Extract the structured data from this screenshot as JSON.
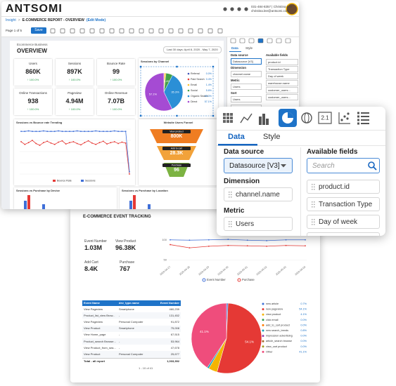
{
  "back_window": {
    "logo": "ANTSOMI",
    "user": {
      "phone": "031-484-8357 | Christina Lee",
      "email": "christina.lee@antsomi.com"
    },
    "breadcrumb": {
      "root": "Insight",
      "separator": ">",
      "title": "E-COMMERCE REPORT - OVERVIEW",
      "mode": "(Edit Mode)"
    },
    "toolbar": {
      "page": "Page 1 of 5",
      "save": "Save"
    },
    "report": {
      "subtitle": "Ecommerce Business",
      "title": "OVERVIEW",
      "date_range": "Last 30 days: April 8, 2020 - May 7, 2020",
      "kpis": [
        {
          "label": "Users",
          "value": "860K",
          "change": "↑ 100.0%"
        },
        {
          "label": "Sessions",
          "value": "897K",
          "change": "↑ 100.0%"
        },
        {
          "label": "Bounce Rate",
          "value": "99",
          "change": "↑ 100.0%"
        },
        {
          "label": "Online Transactions",
          "value": "938",
          "change": "↑ 100.0%"
        },
        {
          "label": "Pageview",
          "value": "4.94M",
          "change": "↑ 100.0%"
        },
        {
          "label": "Online Revenue",
          "value": "7.07B",
          "change": "↑ 100.0%"
        }
      ],
      "channel_chart": {
        "type": "pie",
        "title": "Sessions by Channel",
        "series": [
          {
            "name": "Referral",
            "value": 0.0,
            "value_label": "0.0%",
            "color": "#3f51b5"
          },
          {
            "name": "Paid Search",
            "value": 0.4,
            "value_label": "0.4%",
            "color": "#e53935"
          },
          {
            "name": "Email",
            "value": 1.4,
            "value_label": "1.4%",
            "color": "#fbc02d"
          },
          {
            "name": "Social",
            "value": 5.8,
            "value_label": "5.8%",
            "color": "#43a047"
          },
          {
            "name": "Organic Search",
            "value": 35.3,
            "value_label": "35.3%",
            "color": "#2b8fd6"
          },
          {
            "name": "Direct",
            "value": 57.1,
            "value_label": "57.1%",
            "color": "#a54bd3"
          }
        ]
      },
      "trend_chart": {
        "type": "line",
        "title": "Sessions vs Bounce rate Trending",
        "ylim": [
          0,
          100
        ],
        "series": [
          {
            "name": "Bounce Rate",
            "color": "#e53935",
            "values": [
              72,
              66,
              70,
              75,
              68,
              64,
              70,
              73,
              69,
              66,
              71,
              74,
              67,
              70,
              72,
              68,
              65,
              70,
              74,
              69,
              66,
              70,
              73,
              67,
              70,
              72,
              68,
              71,
              69,
              0
            ]
          },
          {
            "name": "Sessions",
            "color": "#3f6fd8",
            "values": [
              95,
              95,
              96,
              95,
              95,
              95,
              96,
              95,
              95,
              95,
              96,
              95,
              95,
              95,
              95,
              96,
              95,
              95,
              95,
              95,
              96,
              95,
              95,
              95,
              95,
              96,
              95,
              95,
              95,
              5
            ]
          }
        ]
      },
      "funnel": {
        "title": "Website Users Funnel",
        "steps": [
          {
            "label": "View product",
            "value": "800K"
          },
          {
            "label": "Add to cart",
            "value": "28.3K"
          },
          {
            "label": "Purchase",
            "value": "96"
          }
        ]
      },
      "device_card": "Sessions vs Purchase by Device",
      "location_card": "Sessions vs Purchase by Location"
    },
    "side_panel": {
      "tabs": [
        "Data",
        "Style"
      ],
      "left": [
        {
          "label": "Data source",
          "field": "Datasource [V3]"
        },
        {
          "label": "Dimension",
          "field": "channel.name"
        },
        {
          "label": "Metric",
          "field": "Users"
        },
        {
          "label": "Sort",
          "field": "Users"
        }
      ],
      "sort_order": "Descending",
      "available_label": "Available fields",
      "fields": [
        "product.id",
        "Transaction Type",
        "Day of week",
        "warehouse.name",
        "customer_users...",
        "customer_users..."
      ]
    }
  },
  "front_panel": {
    "scorecard_icon": "2.1",
    "tabs": [
      "Data",
      "Style"
    ],
    "data_source_label": "Data source",
    "data_source": "Datasource [V3]",
    "dimension_label": "Dimension",
    "dimension": "channel.name",
    "metric_label": "Metric",
    "metric": "Users",
    "available_label": "Available fields",
    "search_placeholder": "Search",
    "fields": [
      "product.id",
      "Transaction Type",
      "Day of week"
    ]
  },
  "bottom_window": {
    "title": "E-COMMERCE EVENT TRACKING",
    "kpis": [
      {
        "label": "Event Number",
        "value": "1.03M"
      },
      {
        "label": "View Product",
        "value": "96.38K"
      },
      {
        "label": "Add Cart",
        "value": "8.4K"
      },
      {
        "label": "Purchase",
        "value": "767"
      }
    ],
    "line_chart": {
      "type": "line",
      "categories": [
        "2020-04-27",
        "2020-04-28",
        "2020-04-29",
        "2020-04-30",
        "2020-05-01",
        "2020-05-02",
        "2020-05-03",
        "2020-05-04"
      ],
      "ylim": [
        40,
        110
      ],
      "yticks": [
        50,
        100
      ],
      "series": [
        {
          "name": "Event Number",
          "color": "#3f6fd8",
          "values": [
            100,
            99,
            100,
            101,
            99,
            98,
            100,
            100
          ]
        },
        {
          "name": "Purchase",
          "color": "#e53935",
          "values": [
            88,
            80,
            84,
            86,
            85,
            84,
            86,
            85
          ]
        }
      ]
    },
    "table": {
      "columns": [
        "Event Name",
        "dev_type.name",
        "Event Number"
      ],
      "rows": [
        [
          "View Pageview",
          "Smartphone",
          "460,239"
        ],
        [
          "Product_list_view Brow...",
          "-",
          "131,452"
        ],
        [
          "View Pageview",
          "Personal Computer",
          "91,872"
        ],
        [
          "View Product",
          "Smartphone",
          "75,008"
        ],
        [
          "View Home_page",
          "-",
          "67,515"
        ],
        [
          "Product_search Browse...",
          "-",
          "53,964"
        ],
        [
          "View Product_from_sea...",
          "-",
          "47,678"
        ],
        [
          "View Product",
          "Personal Computer",
          "25,677"
        ]
      ],
      "total": {
        "label": "Total - all report",
        "value": "1,033,392"
      },
      "pagination": "1 - 10 of 41"
    },
    "pie_chart": {
      "type": "pie",
      "series": [
        {
          "name": "new article",
          "value": 0.7,
          "value_label": "0.7%",
          "color": "#3b6fd6"
        },
        {
          "name": "new pageview",
          "value": 54.1,
          "value_label": "54.1%",
          "color": "#e53935"
        },
        {
          "name": "view product",
          "value": 4.1,
          "value_label": "4.1%",
          "color": "#f5b400"
        },
        {
          "name": "click email",
          "value": 0.0,
          "value_label": "0.0%",
          "color": "#2e9e4f"
        },
        {
          "name": "add_to_cart product",
          "value": 0.0,
          "value_label": "0.0%",
          "color": "#ff7a00"
        },
        {
          "name": "new search_trends",
          "value": 0.8,
          "value_label": "0.8%",
          "color": "#17a2b8"
        },
        {
          "name": "impression advertising",
          "value": 0.0,
          "value_label": "0.0%",
          "color": "#8e44ad"
        },
        {
          "name": "article_search browse",
          "value": 0.0,
          "value_label": "0.0%",
          "color": "#a5682a"
        },
        {
          "name": "view_cart product",
          "value": 0.0,
          "value_label": "0.0%",
          "color": "#9e9d24"
        },
        {
          "name": "Other",
          "value": 41.1,
          "value_label": "41.1%",
          "color": "#ef4d7c"
        }
      ]
    }
  }
}
